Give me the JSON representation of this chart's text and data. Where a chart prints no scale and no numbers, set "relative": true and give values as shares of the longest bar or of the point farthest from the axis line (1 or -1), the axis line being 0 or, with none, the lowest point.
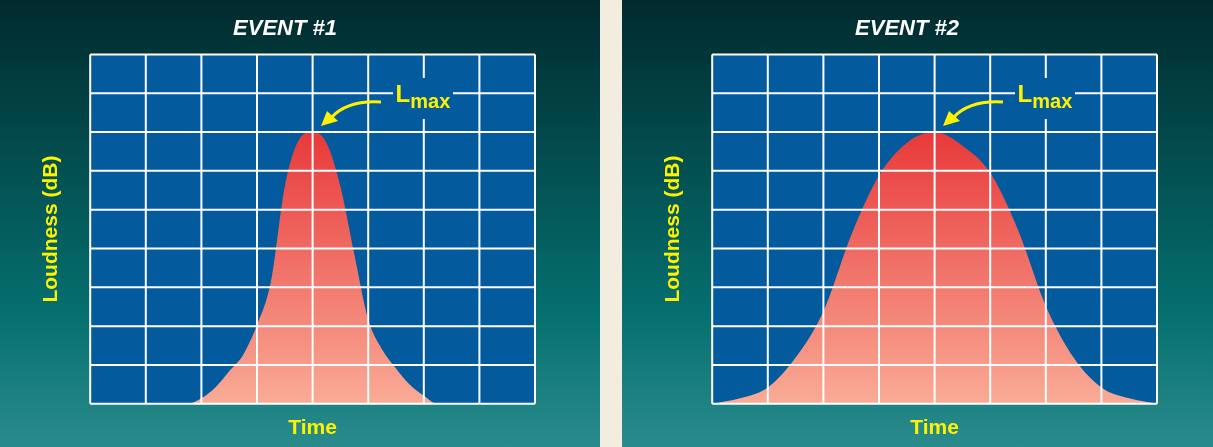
{
  "chart_data": [
    {
      "type": "area",
      "title": "EVENT #1",
      "xlabel": "Time",
      "ylabel": "Loudness (dB)",
      "relative": true,
      "grid": true,
      "marker": "none",
      "categories": [
        null,
        null,
        null,
        null,
        null,
        null,
        null,
        null,
        null,
        null,
        null,
        null,
        null,
        null,
        null,
        null,
        null,
        null,
        null,
        null,
        null,
        null,
        null,
        null,
        null,
        null,
        null,
        null,
        null,
        null,
        null,
        null,
        null
      ],
      "series": [
        {
          "color": "#e8393a",
          "values": [
            0,
            0,
            0,
            0,
            0,
            0,
            0,
            0,
            0.02,
            0.06,
            0.12,
            0.18,
            0.29,
            0.45,
            0.8,
            0.97,
            1,
            0.96,
            0.8,
            0.55,
            0.31,
            0.2,
            0.13,
            0.07,
            0.03,
            0,
            0,
            0,
            0,
            0,
            0,
            0,
            0
          ]
        }
      ],
      "annotations": [
        "L$_{max}$"
      ]
    },
    {
      "type": "area",
      "title": "EVENT #2",
      "xlabel": "Time",
      "ylabel": "Loudness (dB)",
      "relative": true,
      "grid": true,
      "marker": "none",
      "categories": [
        null,
        null,
        null,
        null,
        null,
        null,
        null,
        null,
        null,
        null,
        null,
        null,
        null,
        null,
        null,
        null,
        null
      ],
      "series": [
        {
          "color": "#e8393a",
          "values": [
            0,
            0.02,
            0.06,
            0.17,
            0.34,
            0.62,
            0.84,
            0.96,
            1,
            0.95,
            0.85,
            0.64,
            0.36,
            0.17,
            0.06,
            0.02,
            0
          ]
        }
      ],
      "annotations": [
        "L$_{max}$"
      ]
    }
  ]
}
